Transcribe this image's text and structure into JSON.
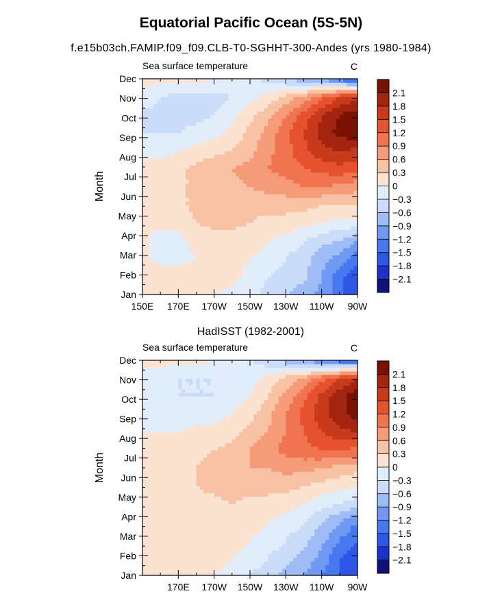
{
  "header": {
    "title": "Equatorial Pacific Ocean (5S-5N)",
    "subtitle": "f.e15b03ch.FAMIP.f09_f09.CLB-T0-SGHHT-300-Andes (yrs 1980-1984)"
  },
  "colors": {
    "levels": [
      "#10107a",
      "#1e32c8",
      "#2f55e6",
      "#4878ef",
      "#6f99f3",
      "#9fbcf6",
      "#cbdcf9",
      "#e2edfb",
      "#fce2d0",
      "#f8c3a5",
      "#f59b78",
      "#f07450",
      "#e6512e",
      "#c83a1c",
      "#a32510",
      "#7a1204"
    ]
  },
  "chart_data": [
    {
      "type": "heatmap",
      "panel_title": "",
      "left_label": "Sea surface temperature",
      "right_label": "C",
      "ylabel": "Month",
      "yticks": [
        "Jan",
        "Feb",
        "Mar",
        "Apr",
        "May",
        "Jun",
        "Jul",
        "Aug",
        "Sep",
        "Oct",
        "Nov",
        "Dec"
      ],
      "xticks": [
        "150E",
        "170E",
        "170W",
        "150W",
        "130W",
        "110W",
        "90W"
      ],
      "xlim_deg_east": [
        150,
        270
      ],
      "colorbar_labels": [
        "2.1",
        "1.8",
        "1.5",
        "1.2",
        "0.9",
        "0.6",
        "0.3",
        "0",
        "-0.3",
        "-0.6",
        "-0.9",
        "-1.2",
        "-1.5",
        "-1.8",
        "-2.1"
      ],
      "levels": [
        -2.1,
        -1.8,
        -1.5,
        -1.2,
        -0.9,
        -0.6,
        -0.3,
        0,
        0.3,
        0.6,
        0.9,
        1.2,
        1.5,
        1.8,
        2.1
      ],
      "x_grid_deg_east": [
        150,
        160,
        170,
        180,
        190,
        200,
        210,
        220,
        230,
        240,
        250,
        260,
        270
      ],
      "values": [
        [
          0.1,
          0.1,
          0.1,
          0.1,
          0.0,
          -0.1,
          -0.2,
          -0.4,
          -0.6,
          -0.8,
          -1.0,
          -1.4,
          -1.8
        ],
        [
          0.2,
          0.2,
          0.2,
          0.2,
          0.2,
          0.1,
          -0.1,
          -0.3,
          -0.4,
          -0.5,
          -0.9,
          -1.4,
          -1.8
        ],
        [
          0.1,
          -0.1,
          -0.1,
          0.0,
          0.1,
          0.1,
          0.0,
          -0.1,
          -0.3,
          -0.5,
          -0.8,
          -1.0,
          -1.4
        ],
        [
          0.1,
          -0.2,
          -0.1,
          0.1,
          0.1,
          0.1,
          0.1,
          0.0,
          -0.1,
          -0.3,
          -0.5,
          -0.6,
          -0.9
        ],
        [
          0.1,
          0.1,
          0.1,
          0.3,
          0.4,
          0.4,
          0.3,
          0.2,
          0.2,
          0.1,
          0.0,
          -0.1,
          -0.1
        ],
        [
          0.1,
          0.1,
          0.2,
          0.4,
          0.5,
          0.5,
          0.4,
          0.4,
          0.4,
          0.4,
          0.3,
          0.3,
          0.3
        ],
        [
          0.1,
          0.1,
          0.2,
          0.4,
          0.5,
          0.5,
          0.6,
          0.7,
          0.8,
          0.9,
          0.9,
          0.8,
          0.7
        ],
        [
          0.1,
          0.1,
          0.2,
          0.4,
          0.5,
          0.6,
          0.7,
          0.9,
          1.0,
          1.2,
          1.3,
          1.4,
          1.3
        ],
        [
          -0.1,
          -0.1,
          0.0,
          0.1,
          0.2,
          0.3,
          0.5,
          0.8,
          1.1,
          1.4,
          1.7,
          1.8,
          1.7
        ],
        [
          -0.3,
          -0.3,
          -0.3,
          -0.2,
          -0.1,
          0.1,
          0.4,
          0.7,
          1.1,
          1.5,
          1.9,
          2.2,
          2.3
        ],
        [
          -0.4,
          -0.4,
          -0.4,
          -0.4,
          -0.3,
          -0.1,
          0.2,
          0.5,
          0.9,
          1.3,
          1.8,
          2.1,
          2.3
        ],
        [
          -0.1,
          -0.3,
          -0.4,
          -0.4,
          -0.4,
          -0.3,
          -0.1,
          0.1,
          0.4,
          0.7,
          1.1,
          1.5,
          1.7
        ],
        [
          0.1,
          0.1,
          0.1,
          0.1,
          0.0,
          -0.1,
          -0.2,
          -0.4,
          -0.6,
          -0.8,
          -1.0,
          -1.4,
          -1.8
        ]
      ]
    },
    {
      "type": "heatmap",
      "panel_title": "HadISST (1982-2001)",
      "left_label": "Sea surface temperature",
      "right_label": "C",
      "ylabel": "Month",
      "yticks": [
        "Jan",
        "Feb",
        "Mar",
        "Apr",
        "May",
        "Jun",
        "Jul",
        "Aug",
        "Sep",
        "Oct",
        "Nov",
        "Dec"
      ],
      "xticks": [
        "170E",
        "170W",
        "150W",
        "130W",
        "110W",
        "90W"
      ],
      "xlim_deg_east": [
        150,
        270
      ],
      "colorbar_labels": [
        "2.1",
        "1.8",
        "1.5",
        "1.2",
        "0.9",
        "0.6",
        "0.3",
        "0",
        "-0.3",
        "-0.6",
        "-0.9",
        "-1.2",
        "-1.5",
        "-1.8",
        "-2.1"
      ],
      "levels": [
        -2.1,
        -1.8,
        -1.5,
        -1.2,
        -0.9,
        -0.6,
        -0.3,
        0,
        0.3,
        0.6,
        0.9,
        1.2,
        1.5,
        1.8,
        2.1
      ],
      "x_grid_deg_east": [
        150,
        160,
        170,
        180,
        190,
        200,
        210,
        220,
        230,
        240,
        250,
        260,
        270
      ],
      "values": [
        [
          0.1,
          0.1,
          0.1,
          0.1,
          0.0,
          -0.1,
          -0.3,
          -0.5,
          -0.7,
          -0.9,
          -1.2,
          -1.5,
          -1.6
        ],
        [
          0.1,
          0.1,
          0.1,
          0.1,
          0.1,
          0.0,
          -0.1,
          -0.3,
          -0.5,
          -0.7,
          -1.0,
          -1.5,
          -1.7
        ],
        [
          0.1,
          0.1,
          0.1,
          0.1,
          0.1,
          0.1,
          0.0,
          -0.1,
          -0.3,
          -0.5,
          -0.8,
          -1.2,
          -1.5
        ],
        [
          0.1,
          0.1,
          0.1,
          0.2,
          0.2,
          0.2,
          0.1,
          0.0,
          -0.1,
          -0.3,
          -0.6,
          -0.9,
          -1.2
        ],
        [
          0.0,
          0.1,
          0.1,
          0.2,
          0.2,
          0.3,
          0.2,
          0.2,
          0.1,
          0.0,
          -0.2,
          -0.3,
          -0.5
        ],
        [
          0.1,
          0.1,
          0.2,
          0.3,
          0.4,
          0.5,
          0.4,
          0.4,
          0.4,
          0.3,
          0.2,
          0.1,
          0.0
        ],
        [
          0.1,
          0.1,
          0.2,
          0.3,
          0.5,
          0.6,
          0.6,
          0.6,
          0.7,
          0.7,
          0.6,
          0.5,
          0.4
        ],
        [
          0.1,
          0.1,
          0.1,
          0.2,
          0.3,
          0.4,
          0.6,
          0.8,
          1.0,
          1.1,
          1.2,
          1.2,
          1.1
        ],
        [
          0.0,
          0.0,
          0.0,
          0.1,
          0.1,
          0.2,
          0.4,
          0.6,
          0.9,
          1.2,
          1.5,
          1.7,
          1.8
        ],
        [
          -0.1,
          -0.2,
          -0.2,
          -0.2,
          -0.1,
          0.0,
          0.2,
          0.5,
          0.9,
          1.3,
          1.7,
          2.0,
          2.2
        ],
        [
          -0.2,
          -0.3,
          -0.3,
          -0.3,
          -0.3,
          -0.2,
          0.0,
          0.3,
          0.7,
          1.1,
          1.6,
          2.0,
          2.3
        ],
        [
          -0.1,
          -0.2,
          -0.3,
          -0.3,
          -0.3,
          -0.3,
          -0.1,
          0.1,
          0.4,
          0.7,
          1.1,
          1.5,
          1.8
        ],
        [
          0.1,
          0.1,
          0.1,
          0.1,
          0.0,
          -0.1,
          -0.3,
          -0.5,
          -0.7,
          -0.9,
          -1.2,
          -1.5,
          -1.6
        ]
      ]
    }
  ]
}
